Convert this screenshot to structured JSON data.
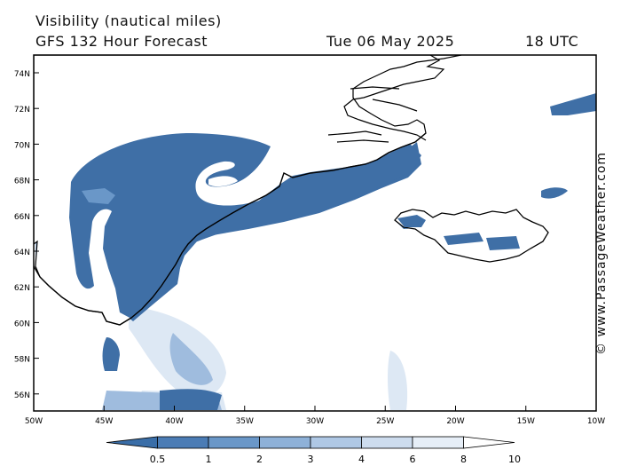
{
  "header": {
    "title": "Visibility (nautical miles)",
    "subtitle": "GFS 132 Hour Forecast",
    "date": "Tue 06 May 2025",
    "time": "18 UTC"
  },
  "credit": "© www.PassageWeather.com",
  "map": {
    "lat_labels": [
      "74N",
      "72N",
      "70N",
      "68N",
      "66N",
      "64N",
      "62N",
      "60N",
      "58N",
      "56N"
    ],
    "lon_labels": [
      "50W",
      "45W",
      "40W",
      "35W",
      "30W",
      "25W",
      "20W",
      "15W",
      "10W"
    ],
    "land_color": "#ffffff",
    "coast_color": "#000000"
  },
  "legend": {
    "labels": [
      "0.5",
      "1",
      "2",
      "3",
      "4",
      "6",
      "8",
      "10"
    ],
    "colors": [
      "#3a6ea8",
      "#4b7cb5",
      "#6a97c8",
      "#8eb1d8",
      "#afc8e5",
      "#cddcee",
      "#e6eef7",
      "#ffffff"
    ]
  }
}
